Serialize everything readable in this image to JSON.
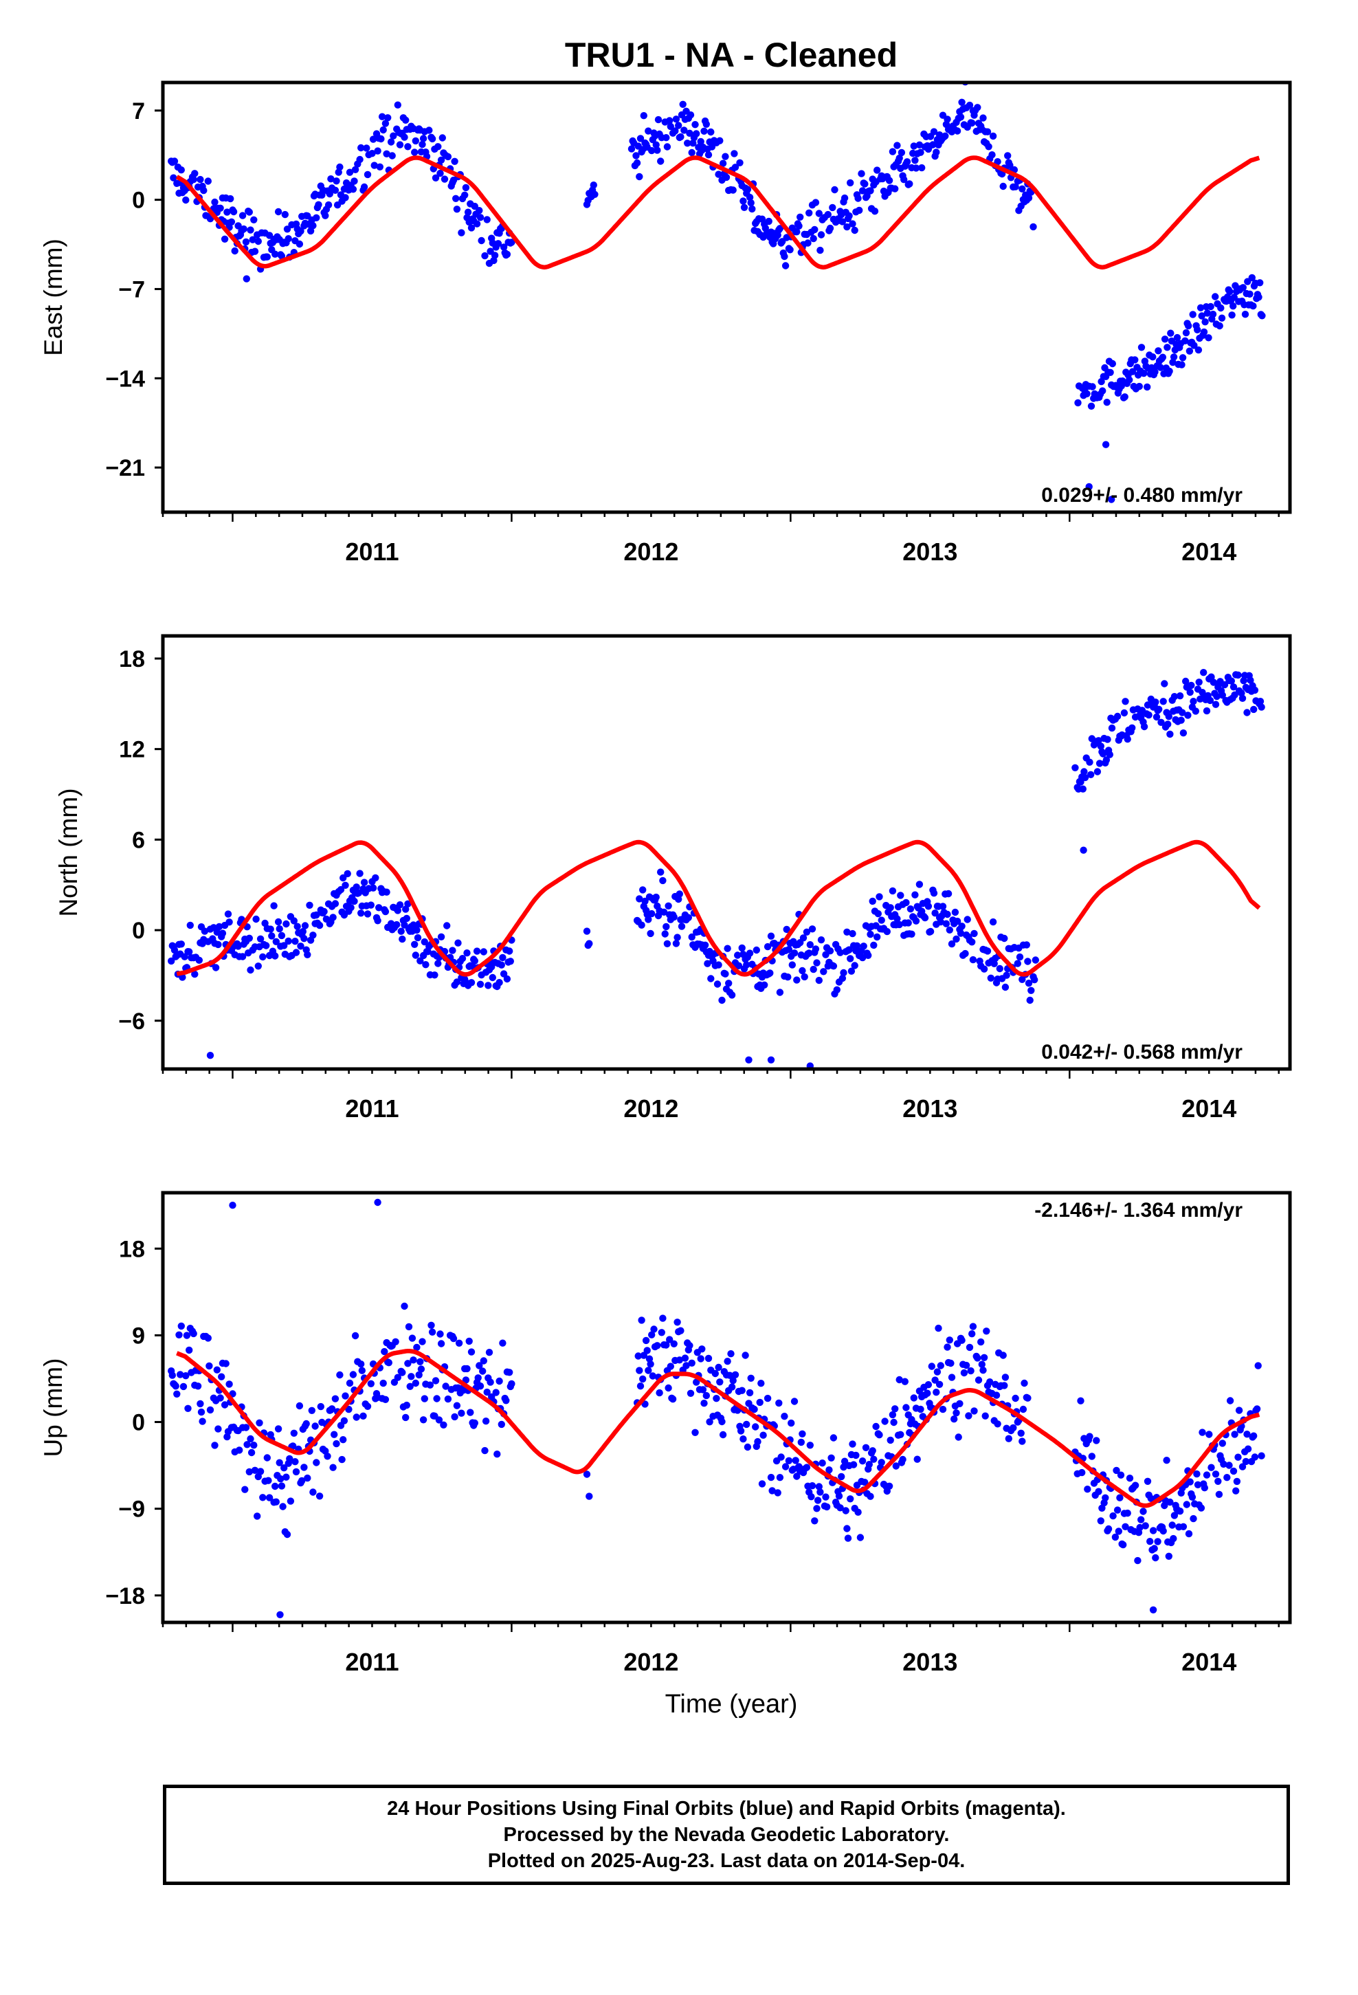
{
  "figure": {
    "title": "TRU1  - NA - Cleaned",
    "xlabel": "Time (year)"
  },
  "colors": {
    "final_orbits": "#0000ff",
    "model_fit": "#ff0000",
    "frame": "#000000"
  },
  "footer": {
    "line1": "24 Hour Positions Using Final Orbits (blue) and Rapid Orbits (magenta).",
    "line2": "Processed by the Nevada Geodetic Laboratory.",
    "line3": "Plotted on 2025-Aug-23. Last data on 2014-Sep-04."
  },
  "chart_data": [
    {
      "type": "scatter",
      "panel": "east",
      "ylabel": "East (mm)",
      "rate_annotation": "0.029+/- 0.480 mm/yr",
      "xlim": [
        2010.75,
        2014.79
      ],
      "ylim": [
        -24.5,
        9.2
      ],
      "xticks": [
        2011,
        2012,
        2013,
        2014
      ],
      "yticks": [
        7,
        0,
        -7,
        -14,
        -21
      ],
      "series": [
        {
          "kind": "points",
          "segments": [
            {
              "t": [
                2010.78,
                2010.85,
                2010.95,
                2011.05,
                2011.15,
                2011.25,
                2011.35,
                2011.45,
                2011.55,
                2011.62,
                2011.7,
                2011.78,
                2011.85,
                2011.92,
                2012.0
              ],
              "y": [
                2.0,
                1.0,
                -1.0,
                -2.8,
                -3.5,
                -2.0,
                0.0,
                2.5,
                4.8,
                5.2,
                4.2,
                2.0,
                -1.0,
                -3.0,
                -3.5
              ],
              "noise": 1.4
            },
            {
              "t": [
                2012.27,
                2012.3
              ],
              "y": [
                0.0,
                0.8
              ],
              "noise": 0.6
            },
            {
              "t": [
                2012.43,
                2012.5,
                2012.58,
                2012.65,
                2012.72,
                2012.8,
                2012.88,
                2012.95,
                2013.05,
                2013.15,
                2013.25,
                2013.35,
                2013.45,
                2013.55,
                2013.62,
                2013.7,
                2013.78,
                2013.87
              ],
              "y": [
                3.2,
                4.5,
                5.8,
                5.5,
                4.0,
                1.5,
                -1.5,
                -3.0,
                -2.8,
                -1.5,
                0.0,
                1.5,
                3.0,
                5.0,
                7.0,
                5.0,
                2.0,
                -0.5
              ],
              "noise": 1.4
            },
            {
              "t": [
                2014.03,
                2014.1,
                2014.2,
                2014.3,
                2014.4,
                2014.5,
                2014.6,
                2014.68,
                2014.69
              ],
              "y": [
                -15.5,
                -14.5,
                -14.0,
                -13.0,
                -11.5,
                -9.5,
                -7.5,
                -7.0,
                -8.0
              ],
              "noise": 1.2
            }
          ],
          "outliers": [
            {
              "t": 2011.05,
              "y": -6.2
            },
            {
              "t": 2014.13,
              "y": -19.2
            },
            {
              "t": 2014.07,
              "y": -22.5
            },
            {
              "t": 2014.15,
              "y": -23.5
            }
          ]
        },
        {
          "kind": "line",
          "t": [
            2010.8,
            2011.0,
            2011.1,
            2011.3,
            2011.5,
            2011.65,
            2011.85,
            2012.1,
            2012.3,
            2012.5,
            2012.65,
            2012.85,
            2013.1,
            2013.3,
            2013.5,
            2013.65,
            2013.85,
            2014.1,
            2014.3,
            2014.5,
            2014.68
          ],
          "y": [
            2.2,
            -3.0,
            -5.4,
            -3.8,
            1.0,
            3.5,
            1.5,
            -5.5,
            -3.8,
            1.0,
            3.5,
            1.5,
            -5.5,
            -3.8,
            1.0,
            3.5,
            1.5,
            -5.5,
            -3.8,
            1.0,
            3.5
          ]
        }
      ]
    },
    {
      "type": "scatter",
      "panel": "north",
      "ylabel": "North (mm)",
      "rate_annotation": "0.042+/- 0.568 mm/yr",
      "xlim": [
        2010.75,
        2014.79
      ],
      "ylim": [
        -9.2,
        19.5
      ],
      "xticks": [
        2011,
        2012,
        2013,
        2014
      ],
      "yticks": [
        18,
        12,
        6,
        0,
        -6
      ],
      "series": [
        {
          "kind": "points",
          "segments": [
            {
              "t": [
                2010.78,
                2010.9,
                2011.0,
                2011.1,
                2011.2,
                2011.3,
                2011.4,
                2011.5,
                2011.6,
                2011.7,
                2011.8,
                2011.9,
                2012.0
              ],
              "y": [
                -1.5,
                -1.0,
                -0.5,
                -1.0,
                -0.5,
                0.5,
                2.5,
                2.0,
                1.0,
                -1.0,
                -2.5,
                -2.5,
                -2.0
              ],
              "noise": 1.3
            },
            {
              "t": [
                2012.27,
                2012.28
              ],
              "y": [
                -1.0,
                0.0
              ],
              "noise": 0.9
            },
            {
              "t": [
                2012.45,
                2012.55,
                2012.65,
                2012.75,
                2012.85,
                2012.95,
                2013.05,
                2013.15,
                2013.25,
                2013.35,
                2013.45,
                2013.55,
                2013.65,
                2013.75,
                2013.85,
                2013.88
              ],
              "y": [
                1.5,
                1.5,
                0.0,
                -2.5,
                -2.5,
                -2.0,
                -1.5,
                -2.0,
                -1.0,
                1.0,
                1.5,
                1.0,
                -0.5,
                -2.0,
                -2.5,
                -3.0
              ],
              "noise": 1.3
            },
            {
              "t": [
                2014.02,
                2014.1,
                2014.2,
                2014.3,
                2014.4,
                2014.5,
                2014.6,
                2014.69
              ],
              "y": [
                10.0,
                12.0,
                13.5,
                14.5,
                15.0,
                15.5,
                16.0,
                15.0
              ],
              "noise": 1.2
            }
          ],
          "outliers": [
            {
              "t": 2010.92,
              "y": -8.3
            },
            {
              "t": 2012.85,
              "y": -8.6
            },
            {
              "t": 2012.93,
              "y": -8.6
            },
            {
              "t": 2013.07,
              "y": -9.0
            },
            {
              "t": 2014.05,
              "y": 5.3
            }
          ]
        },
        {
          "kind": "line",
          "t": [
            2010.8,
            2010.95,
            2011.1,
            2011.3,
            2011.47,
            2011.6,
            2011.72,
            2011.83,
            2011.95,
            2012.1,
            2012.25,
            2012.4,
            2012.47,
            2012.6,
            2012.72,
            2012.83,
            2012.95,
            2013.1,
            2013.25,
            2013.4,
            2013.47,
            2013.6,
            2013.72,
            2013.83,
            2013.95,
            2014.1,
            2014.25,
            2014.4,
            2014.47,
            2014.6,
            2014.68
          ],
          "y": [
            -3.0,
            -2.0,
            2.0,
            4.5,
            6.0,
            3.5,
            -1.0,
            -3.2,
            -1.5,
            2.5,
            4.3,
            5.5,
            6.0,
            3.5,
            -1.0,
            -3.2,
            -1.5,
            2.5,
            4.3,
            5.5,
            6.0,
            3.5,
            -1.0,
            -3.2,
            -1.5,
            2.5,
            4.3,
            5.5,
            6.0,
            3.5,
            1.0
          ]
        }
      ]
    },
    {
      "type": "scatter",
      "panel": "up",
      "ylabel": "Up (mm)",
      "rate_annotation": "-2.146+/- 1.364 mm/yr",
      "xlim": [
        2010.75,
        2014.79
      ],
      "ylim": [
        -20.8,
        23.8
      ],
      "xticks": [
        2011,
        2012,
        2013,
        2014
      ],
      "yticks": [
        18,
        9,
        0,
        -9,
        -18
      ],
      "series": [
        {
          "kind": "points",
          "segments": [
            {
              "t": [
                2010.78,
                2010.9,
                2011.0,
                2011.1,
                2011.2,
                2011.3,
                2011.4,
                2011.5,
                2011.6,
                2011.7,
                2011.8,
                2011.9,
                2012.0
              ],
              "y": [
                6.0,
                4.0,
                0.0,
                -4.0,
                -6.0,
                -3.0,
                1.0,
                5.0,
                7.0,
                6.0,
                4.0,
                3.0,
                2.0
              ],
              "noise": 4.2
            },
            {
              "t": [
                2012.27,
                2012.28
              ],
              "y": [
                -5.0,
                -7.0
              ],
              "noise": 2.0
            },
            {
              "t": [
                2012.45,
                2012.55,
                2012.65,
                2012.75,
                2012.85,
                2012.95,
                2013.05,
                2013.15,
                2013.25,
                2013.35,
                2013.45,
                2013.55,
                2013.65,
                2013.75,
                2013.85
              ],
              "y": [
                6.0,
                7.0,
                6.0,
                4.0,
                1.0,
                -2.0,
                -5.0,
                -7.0,
                -7.0,
                -3.0,
                2.0,
                5.0,
                6.0,
                3.0,
                0.0
              ],
              "noise": 3.8
            },
            {
              "t": [
                2014.02,
                2014.1,
                2014.2,
                2014.3,
                2014.4,
                2014.5,
                2014.6,
                2014.69
              ],
              "y": [
                -3.0,
                -6.0,
                -9.0,
                -11.0,
                -9.0,
                -5.0,
                -2.0,
                1.0
              ],
              "noise": 3.5
            }
          ],
          "outliers": [
            {
              "t": 2011.0,
              "y": 22.5
            },
            {
              "t": 2011.52,
              "y": 22.8
            },
            {
              "t": 2011.17,
              "y": -20.0
            },
            {
              "t": 2014.3,
              "y": -19.5
            }
          ]
        },
        {
          "kind": "line",
          "t": [
            2010.8,
            2010.95,
            2011.1,
            2011.25,
            2011.4,
            2011.55,
            2011.65,
            2011.8,
            2011.95,
            2012.1,
            2012.25,
            2012.4,
            2012.55,
            2012.65,
            2012.8,
            2012.95,
            2013.1,
            2013.25,
            2013.4,
            2013.55,
            2013.65,
            2013.8,
            2013.95,
            2014.1,
            2014.27,
            2014.4,
            2014.55,
            2014.68
          ],
          "y": [
            7.5,
            4.0,
            -1.5,
            -3.5,
            1.5,
            7.0,
            7.5,
            4.5,
            1.5,
            -3.5,
            -5.5,
            0.0,
            5.0,
            5.0,
            2.0,
            -1.0,
            -5.0,
            -7.5,
            -3.0,
            2.5,
            3.5,
            1.0,
            -2.0,
            -5.5,
            -9.0,
            -6.5,
            -1.0,
            1.0
          ]
        }
      ]
    }
  ]
}
